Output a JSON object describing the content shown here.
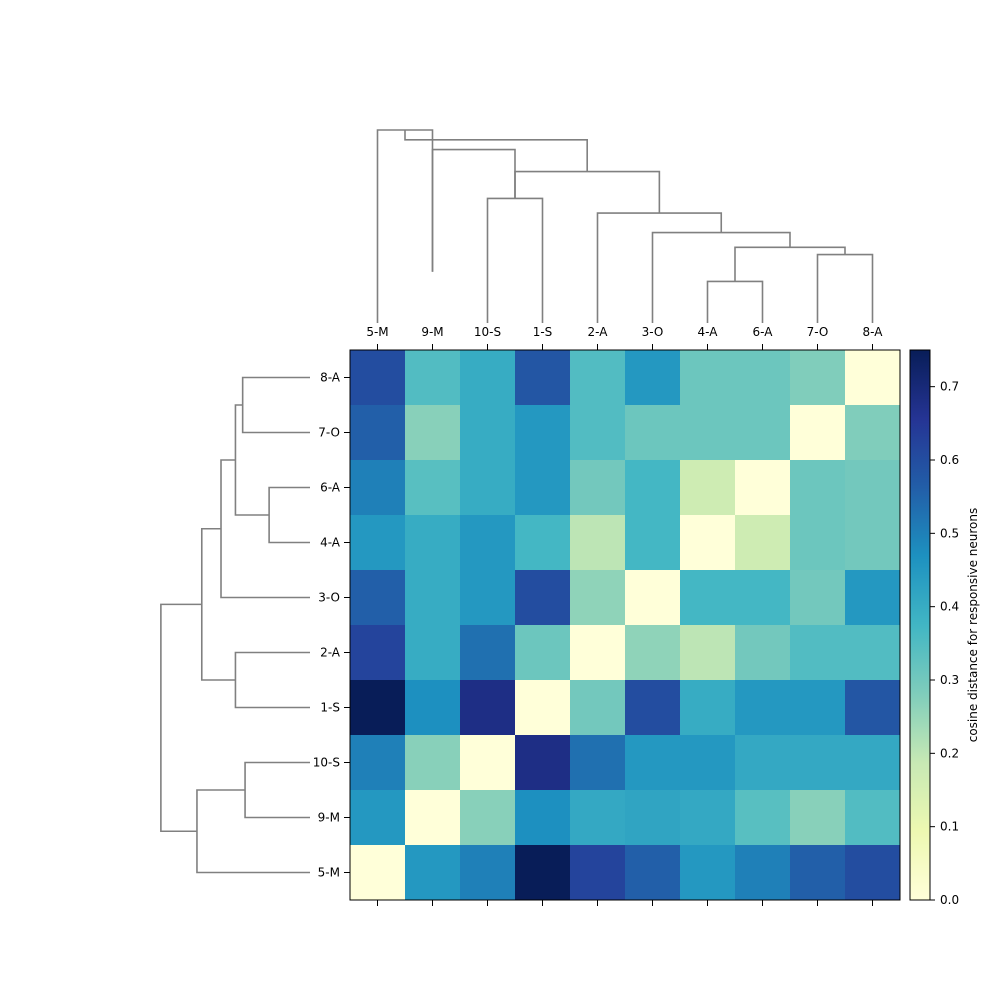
{
  "chart_data": {
    "type": "heatmap",
    "column_labels": [
      "5-M",
      "9-M",
      "10-S",
      "1-S",
      "2-A",
      "3-O",
      "4-A",
      "6-A",
      "7-O",
      "8-A"
    ],
    "row_labels": [
      "8-A",
      "7-O",
      "6-A",
      "4-A",
      "3-O",
      "2-A",
      "1-S",
      "10-S",
      "9-M",
      "5-M"
    ],
    "values": [
      [
        0.6,
        0.35,
        0.4,
        0.58,
        0.35,
        0.45,
        0.31,
        0.31,
        0.28,
        0.0
      ],
      [
        0.56,
        0.27,
        0.4,
        0.45,
        0.35,
        0.31,
        0.31,
        0.31,
        0.0,
        0.28
      ],
      [
        0.5,
        0.34,
        0.4,
        0.45,
        0.3,
        0.37,
        0.17,
        0.0,
        0.31,
        0.3
      ],
      [
        0.45,
        0.4,
        0.45,
        0.37,
        0.2,
        0.37,
        0.0,
        0.17,
        0.31,
        0.3
      ],
      [
        0.56,
        0.4,
        0.45,
        0.6,
        0.26,
        0.0,
        0.37,
        0.37,
        0.3,
        0.45
      ],
      [
        0.62,
        0.4,
        0.53,
        0.31,
        0.0,
        0.26,
        0.2,
        0.3,
        0.35,
        0.35
      ],
      [
        0.75,
        0.47,
        0.68,
        0.0,
        0.3,
        0.6,
        0.4,
        0.45,
        0.45,
        0.58
      ],
      [
        0.5,
        0.27,
        0.0,
        0.68,
        0.53,
        0.45,
        0.45,
        0.41,
        0.41,
        0.41
      ],
      [
        0.45,
        0.0,
        0.27,
        0.47,
        0.41,
        0.42,
        0.41,
        0.34,
        0.27,
        0.35
      ],
      [
        0.0,
        0.45,
        0.5,
        0.75,
        0.62,
        0.56,
        0.45,
        0.5,
        0.56,
        0.6
      ]
    ],
    "colorbar": {
      "label": "cosine distance for responsive neurons",
      "min": 0.0,
      "max": 0.75,
      "ticks": [
        "0.0",
        "0.1",
        "0.2",
        "0.3",
        "0.4",
        "0.5",
        "0.6",
        "0.7"
      ],
      "colormap": "YlGnBu",
      "colormap_stops": [
        "#ffffd9",
        "#edf8b1",
        "#c7e9b4",
        "#7fcdbb",
        "#41b6c4",
        "#1d91c0",
        "#225ea8",
        "#253494",
        "#081d58"
      ]
    },
    "dendrogram_color": "#808080",
    "col_dendrogram": [
      {
        "cols": [
          0.5,
          0.5,
          1.5,
          1.5
        ],
        "heights": [
          0.0,
          0.79,
          0.79,
          0.21
        ]
      },
      {
        "cols": [
          2.5,
          2.5,
          3.5,
          3.5
        ],
        "heights": [
          0.0,
          0.51,
          0.51,
          0.0
        ]
      },
      {
        "cols": [
          1.5,
          1.5,
          3.0,
          3.0
        ],
        "heights": [
          0.21,
          0.71,
          0.71,
          0.51
        ]
      },
      {
        "cols": [
          6.5,
          6.5,
          7.5,
          7.5
        ],
        "heights": [
          0.0,
          0.17,
          0.17,
          0.0
        ]
      },
      {
        "cols": [
          8.5,
          8.5,
          9.5,
          9.5
        ],
        "heights": [
          0.0,
          0.28,
          0.28,
          0.0
        ]
      },
      {
        "cols": [
          7.0,
          7.0,
          9.0,
          9.0
        ],
        "heights": [
          0.17,
          0.31,
          0.31,
          0.28
        ]
      },
      {
        "cols": [
          5.5,
          5.5,
          8.0,
          8.0
        ],
        "heights": [
          0.0,
          0.37,
          0.37,
          0.31
        ]
      },
      {
        "cols": [
          4.5,
          4.5,
          6.75,
          6.75
        ],
        "heights": [
          0.0,
          0.45,
          0.45,
          0.37
        ]
      },
      {
        "cols": [
          3.0,
          3.0,
          5.625,
          5.625
        ],
        "heights": [
          0.51,
          0.62,
          0.62,
          0.45
        ]
      },
      {
        "cols": [
          1.0,
          1.0,
          4.3125,
          4.3125
        ],
        "heights": [
          0.79,
          0.75,
          0.75,
          0.62
        ]
      }
    ],
    "row_dendrogram": [
      {
        "rows": [
          0.5,
          0.5,
          1.5,
          1.5
        ],
        "heights": [
          0.0,
          0.28,
          0.28,
          0.0
        ]
      },
      {
        "rows": [
          2.5,
          2.5,
          3.5,
          3.5
        ],
        "heights": [
          0.0,
          0.17,
          0.17,
          0.0
        ]
      },
      {
        "rows": [
          1.0,
          1.0,
          3.0,
          3.0
        ],
        "heights": [
          0.28,
          0.31,
          0.31,
          0.17
        ]
      },
      {
        "rows": [
          2.0,
          2.0,
          4.5,
          4.5
        ],
        "heights": [
          0.31,
          0.37,
          0.37,
          0.0
        ]
      },
      {
        "rows": [
          5.5,
          5.5,
          6.5,
          6.5
        ],
        "heights": [
          0.0,
          0.31,
          0.31,
          0.0
        ]
      },
      {
        "rows": [
          3.25,
          3.25,
          6.0,
          6.0
        ],
        "heights": [
          0.37,
          0.45,
          0.45,
          0.31
        ]
      },
      {
        "rows": [
          7.5,
          7.5,
          8.5,
          8.5
        ],
        "heights": [
          0.0,
          0.27,
          0.27,
          0.0
        ]
      },
      {
        "rows": [
          8.0,
          8.0,
          9.5,
          9.5
        ],
        "heights": [
          0.27,
          0.47,
          0.47,
          0.0
        ]
      },
      {
        "rows": [
          4.625,
          4.625,
          8.75,
          8.75
        ],
        "heights": [
          0.45,
          0.62,
          0.62,
          0.47
        ]
      }
    ]
  }
}
